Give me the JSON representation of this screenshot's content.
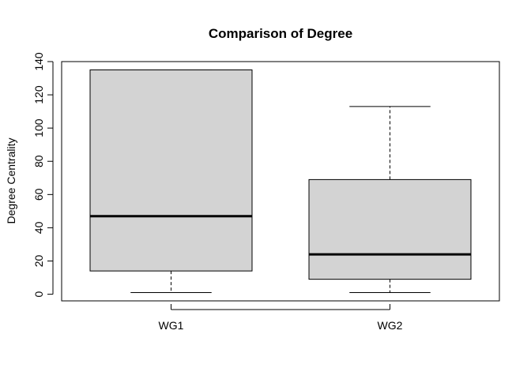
{
  "chart_data": {
    "type": "boxplot",
    "title": "Comparison of Degree",
    "xlabel": "",
    "ylabel": "Degree Centrality",
    "ylim": [
      -4,
      140
    ],
    "yticks": [
      0,
      20,
      40,
      60,
      80,
      100,
      120,
      140
    ],
    "categories": [
      "WG1",
      "WG2"
    ],
    "boxes": [
      {
        "label": "WG1",
        "whisker_low": 1,
        "q1": 14,
        "median": 47,
        "q3": 135,
        "whisker_high": 135
      },
      {
        "label": "WG2",
        "whisker_low": 1,
        "q1": 9,
        "median": 24,
        "q3": 69,
        "whisker_high": 113
      }
    ],
    "grid": false,
    "colors": {
      "box_fill": "#d3d3d3",
      "stroke": "#000000"
    }
  }
}
